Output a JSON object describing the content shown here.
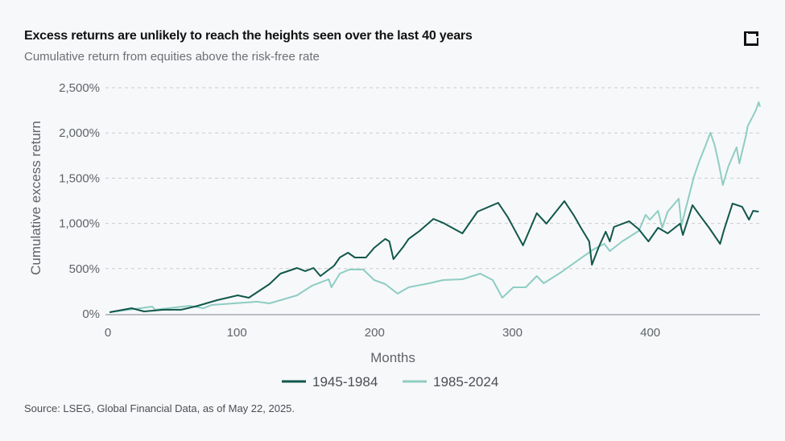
{
  "header": {
    "title": "Excess returns are unlikely to reach the heights seen over the last 40 years",
    "subtitle": "Cumulative return from equities above the risk-free rate",
    "logo_icon": "bracket-square-logo"
  },
  "source": "Source: LSEG, Global Financial Data, as of May 22, 2025.",
  "chart_data": {
    "type": "line",
    "title": "Excess returns are unlikely to reach the heights seen over the last 40 years",
    "subtitle": "Cumulative return from equities above the risk-free rate",
    "xlabel": "Months",
    "ylabel": "Cumulative excess return",
    "xlim": [
      0,
      475
    ],
    "ylim": [
      0,
      2500
    ],
    "x_ticks": [
      0,
      100,
      200,
      300,
      400
    ],
    "x_tick_labels": [
      "0",
      "100",
      "200",
      "300",
      "400"
    ],
    "y_ticks": [
      0,
      500,
      1000,
      1500,
      2000,
      2500
    ],
    "y_tick_labels": [
      "0%",
      "500%",
      "1,000%",
      "1,500%",
      "2,000%",
      "2,500%"
    ],
    "grid": "horizontal dashed",
    "legend": "bottom",
    "series": [
      {
        "name": "1945-1984",
        "color": "#10574b",
        "points": [
          [
            3,
            18
          ],
          [
            19,
            62
          ],
          [
            28,
            27
          ],
          [
            42,
            45
          ],
          [
            55,
            45
          ],
          [
            67,
            89
          ],
          [
            81,
            151
          ],
          [
            96,
            205
          ],
          [
            104,
            178
          ],
          [
            119,
            329
          ],
          [
            127,
            445
          ],
          [
            139,
            507
          ],
          [
            145,
            472
          ],
          [
            151,
            507
          ],
          [
            156,
            418
          ],
          [
            166,
            534
          ],
          [
            170,
            623
          ],
          [
            176,
            676
          ],
          [
            181,
            623
          ],
          [
            189,
            623
          ],
          [
            195,
            730
          ],
          [
            203,
            828
          ],
          [
            206,
            801
          ],
          [
            209,
            605
          ],
          [
            216,
            739
          ],
          [
            220,
            828
          ],
          [
            228,
            917
          ],
          [
            238,
            1050
          ],
          [
            245,
            1006
          ],
          [
            259,
            890
          ],
          [
            270,
            1130
          ],
          [
            285,
            1228
          ],
          [
            292,
            1068
          ],
          [
            303,
            757
          ],
          [
            313,
            1113
          ],
          [
            320,
            997
          ],
          [
            333,
            1246
          ],
          [
            340,
            1086
          ],
          [
            345,
            952
          ],
          [
            351,
            801
          ],
          [
            353,
            543
          ],
          [
            358,
            739
          ],
          [
            363,
            908
          ],
          [
            366,
            801
          ],
          [
            369,
            961
          ],
          [
            380,
            1024
          ],
          [
            387,
            935
          ],
          [
            394,
            801
          ],
          [
            401,
            952
          ],
          [
            408,
            890
          ],
          [
            417,
            997
          ],
          [
            419,
            872
          ],
          [
            426,
            1202
          ],
          [
            431,
            1095
          ],
          [
            438,
            952
          ],
          [
            446,
            774
          ],
          [
            449,
            935
          ],
          [
            455,
            1219
          ],
          [
            462,
            1184
          ],
          [
            467,
            1041
          ],
          [
            470,
            1139
          ],
          [
            474,
            1130
          ]
        ]
      },
      {
        "name": "1985-2024",
        "color": "#8ecdc3",
        "points": [
          [
            3,
            18
          ],
          [
            34,
            80
          ],
          [
            36,
            45
          ],
          [
            61,
            89
          ],
          [
            71,
            62
          ],
          [
            77,
            98
          ],
          [
            110,
            134
          ],
          [
            119,
            116
          ],
          [
            139,
            205
          ],
          [
            150,
            312
          ],
          [
            162,
            383
          ],
          [
            164,
            294
          ],
          [
            170,
            445
          ],
          [
            177,
            490
          ],
          [
            187,
            490
          ],
          [
            195,
            374
          ],
          [
            203,
            329
          ],
          [
            212,
            223
          ],
          [
            220,
            294
          ],
          [
            235,
            338
          ],
          [
            245,
            374
          ],
          [
            259,
            383
          ],
          [
            272,
            445
          ],
          [
            281,
            374
          ],
          [
            288,
            178
          ],
          [
            296,
            294
          ],
          [
            305,
            294
          ],
          [
            313,
            418
          ],
          [
            318,
            338
          ],
          [
            331,
            463
          ],
          [
            340,
            561
          ],
          [
            354,
            712
          ],
          [
            362,
            774
          ],
          [
            366,
            694
          ],
          [
            375,
            801
          ],
          [
            387,
            917
          ],
          [
            392,
            1095
          ],
          [
            395,
            1041
          ],
          [
            401,
            1139
          ],
          [
            404,
            952
          ],
          [
            408,
            1130
          ],
          [
            416,
            1273
          ],
          [
            418,
            979
          ],
          [
            424,
            1335
          ],
          [
            427,
            1513
          ],
          [
            431,
            1691
          ],
          [
            435,
            1842
          ],
          [
            439,
            2003
          ],
          [
            442,
            1869
          ],
          [
            445,
            1664
          ],
          [
            448,
            1424
          ],
          [
            452,
            1629
          ],
          [
            458,
            1842
          ],
          [
            460,
            1664
          ],
          [
            465,
            1985
          ],
          [
            466,
            2074
          ],
          [
            472,
            2252
          ],
          [
            474,
            2341
          ],
          [
            475,
            2290
          ]
        ]
      }
    ]
  }
}
